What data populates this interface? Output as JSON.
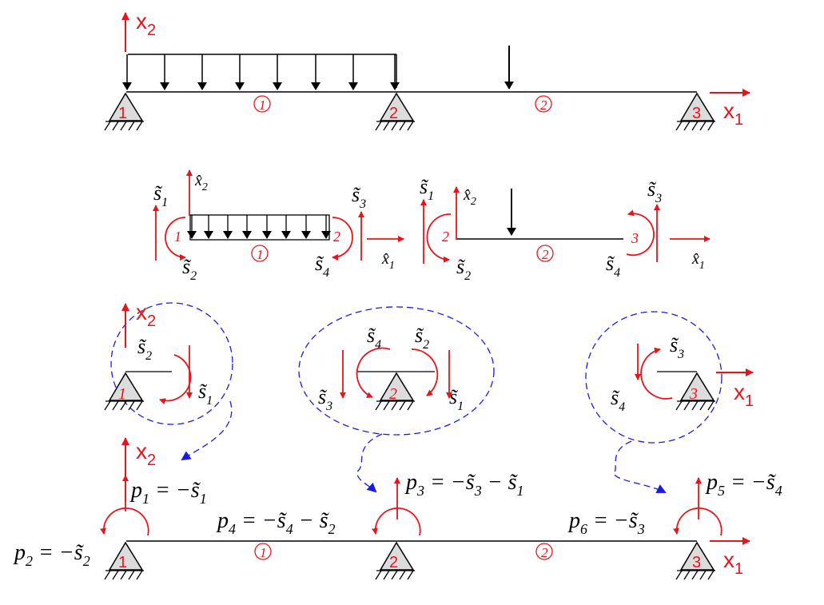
{
  "colors": {
    "force": "#e8141b",
    "load": "#000000",
    "guide": "#1a1ae6",
    "support_fill": "#dcdcdc"
  },
  "axes": {
    "x1": "x",
    "x1_sub": "1",
    "x2": "x",
    "x2_sub": "2"
  },
  "nodes": {
    "n1": "1",
    "n2": "2",
    "n3": "3"
  },
  "elements": {
    "e1": "1",
    "e2": "2"
  },
  "local_axes": {
    "x1_hat": "x̂",
    "x2_hat": "x̂",
    "sub1": "1",
    "sub2": "2"
  },
  "element_forces": {
    "s_sym": "s̃",
    "e1": {
      "s1": "1",
      "s2": "2",
      "s3": "3",
      "s4": "4"
    },
    "e2": {
      "s1": "1",
      "s2": "2",
      "s3": "3",
      "s4": "4"
    }
  },
  "node_forces": {
    "n1": [
      "2",
      "1"
    ],
    "n2": [
      "4",
      "2",
      "3",
      "1"
    ],
    "n3": [
      "3",
      "4"
    ]
  },
  "equations": {
    "p1": {
      "lhs": "p",
      "sub": "1",
      "eq": " = −",
      "terms": [
        [
          "s̃",
          "1"
        ]
      ]
    },
    "p2": {
      "lhs": "p",
      "sub": "2",
      "eq": " = −",
      "terms": [
        [
          "s̃",
          "2"
        ]
      ]
    },
    "p3": {
      "lhs": "p",
      "sub": "3",
      "eq": " = −",
      "terms": [
        [
          "s̃",
          "3"
        ],
        [
          "s̃",
          "1"
        ]
      ]
    },
    "p4": {
      "lhs": "p",
      "sub": "4",
      "eq": " = −",
      "terms": [
        [
          "s̃",
          "4"
        ],
        [
          "s̃",
          "2"
        ]
      ]
    },
    "p5": {
      "lhs": "p",
      "sub": "5",
      "eq": " = −",
      "terms": [
        [
          "s̃",
          "4"
        ]
      ]
    },
    "p6": {
      "lhs": "p",
      "sub": "6",
      "eq": " = −",
      "terms": [
        [
          "s̃",
          "3"
        ]
      ]
    }
  }
}
